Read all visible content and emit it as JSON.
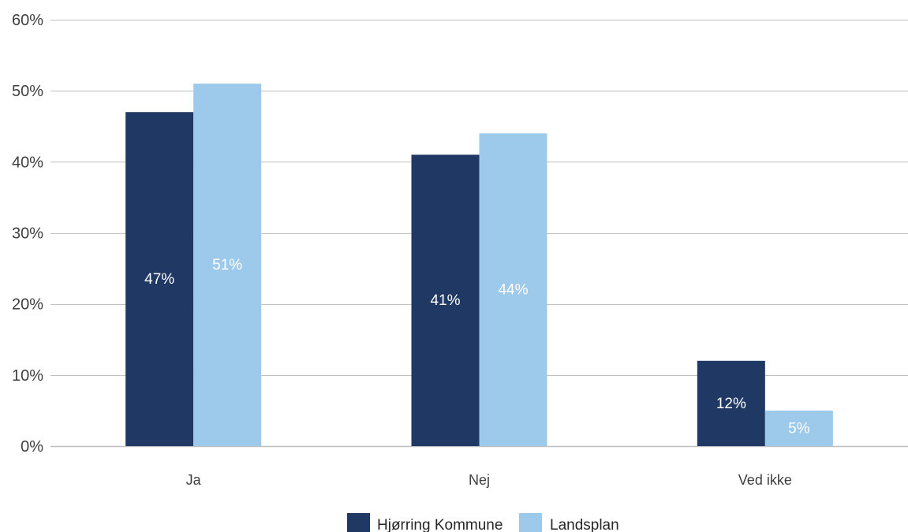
{
  "chart_data": {
    "type": "bar",
    "categories": [
      "Ja",
      "Nej",
      "Ved ikke"
    ],
    "series": [
      {
        "name": "Hjørring Kommune",
        "values": [
          47,
          41,
          12
        ],
        "labels": [
          "47%",
          "41%",
          "12%"
        ],
        "color": "#1f3864"
      },
      {
        "name": "Landsplan",
        "values": [
          51,
          44,
          5
        ],
        "labels": [
          "51%",
          "44%",
          "5%"
        ],
        "color": "#9dc9ea"
      }
    ],
    "ylim": [
      0,
      60
    ],
    "yticks": [
      0,
      10,
      20,
      30,
      40,
      50,
      60
    ],
    "ytick_labels": [
      "0%",
      "10%",
      "20%",
      "30%",
      "40%",
      "50%",
      "60%"
    ],
    "grid": true,
    "legend_position": "bottom",
    "gridline_color": "#bfbfbf"
  }
}
